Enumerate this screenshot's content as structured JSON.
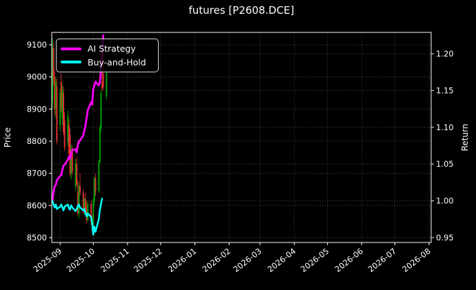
{
  "title": "futures [P2608.DCE]",
  "colors": {
    "background": "#000000",
    "text": "#ffffff",
    "grid": "#5c5c5c",
    "spine": "#ffffff",
    "candle_up": "#00a000",
    "candle_down": "#dd3232",
    "ai_strategy": "#ff00ff",
    "buy_and_hold": "#00ffff"
  },
  "chart_data": {
    "type": "candlestick+line",
    "title": "futures [P2608.DCE]",
    "grid": "dotted",
    "left_axis": {
      "label": "Price",
      "ticks": [
        8500,
        8600,
        8700,
        8800,
        8900,
        9000,
        9100
      ],
      "ylim": [
        8485,
        9140
      ]
    },
    "right_axis": {
      "label": "Return",
      "ticks": [
        "0.95",
        "1.00",
        "1.05",
        "1.10",
        "1.15",
        "1.20"
      ],
      "ylim": [
        0.943,
        1.229
      ]
    },
    "x_axis": {
      "tick_labels": [
        "2025-09",
        "2025-10",
        "2025-11",
        "2025-12",
        "2026-01",
        "2026-02",
        "2026-03",
        "2026-04",
        "2026-05",
        "2026-06",
        "2026-07",
        "2026-08"
      ],
      "range": [
        "2025-08-24",
        "2026-08-02"
      ],
      "label_rotation_deg": -38
    },
    "legend": [
      {
        "label": "AI Strategy",
        "color": "#ff00ff"
      },
      {
        "label": "Buy-and-Hold",
        "color": "#00ffff"
      }
    ],
    "candles_columns": [
      "date",
      "open",
      "high",
      "low",
      "close"
    ],
    "candles": [
      [
        "2025-08-25",
        8920,
        9120,
        8900,
        9090
      ],
      [
        "2025-08-26",
        9090,
        9105,
        8975,
        9000
      ],
      [
        "2025-08-27",
        9000,
        9020,
        8880,
        8900
      ],
      [
        "2025-08-28",
        8900,
        9000,
        8870,
        8985
      ],
      [
        "2025-08-29",
        8970,
        8995,
        8790,
        8800
      ],
      [
        "2025-09-01",
        8850,
        8965,
        8830,
        8950
      ],
      [
        "2025-09-02",
        8985,
        9010,
        8890,
        8900
      ],
      [
        "2025-09-03",
        8870,
        8975,
        8850,
        8960
      ],
      [
        "2025-09-04",
        8950,
        8970,
        8820,
        8830
      ],
      [
        "2025-09-05",
        8865,
        8890,
        8770,
        8780
      ],
      [
        "2025-09-08",
        8800,
        8895,
        8785,
        8880
      ],
      [
        "2025-09-09",
        8850,
        8870,
        8750,
        8760
      ],
      [
        "2025-09-10",
        8820,
        8840,
        8690,
        8700
      ],
      [
        "2025-09-11",
        8700,
        8790,
        8680,
        8775
      ],
      [
        "2025-09-12",
        8770,
        8785,
        8695,
        8705
      ],
      [
        "2025-09-15",
        8660,
        8745,
        8645,
        8730
      ],
      [
        "2025-09-16",
        8730,
        8750,
        8655,
        8665
      ],
      [
        "2025-09-17",
        8640,
        8680,
        8570,
        8575
      ],
      [
        "2025-09-18",
        8575,
        8670,
        8560,
        8660
      ],
      [
        "2025-09-19",
        8660,
        8700,
        8630,
        8640
      ],
      [
        "2025-09-22",
        8640,
        8650,
        8575,
        8580
      ],
      [
        "2025-09-23",
        8580,
        8625,
        8570,
        8620
      ],
      [
        "2025-09-24",
        8620,
        8640,
        8580,
        8590
      ],
      [
        "2025-09-25",
        8590,
        8610,
        8545,
        8555
      ],
      [
        "2025-09-26",
        8555,
        8615,
        8550,
        8605
      ],
      [
        "2025-09-29",
        8605,
        8615,
        8540,
        8550
      ],
      [
        "2025-09-30",
        8550,
        8570,
        8515,
        8525
      ],
      [
        "2025-10-01",
        8525,
        8625,
        8520,
        8615
      ],
      [
        "2025-10-02",
        8615,
        8690,
        8600,
        8685
      ],
      [
        "2025-10-03",
        8685,
        8700,
        8630,
        8645
      ],
      [
        "2025-10-06",
        8645,
        8740,
        8640,
        8735
      ],
      [
        "2025-10-07",
        8735,
        8850,
        8730,
        8840
      ],
      [
        "2025-10-08",
        8840,
        8960,
        8830,
        8950
      ],
      [
        "2025-10-09",
        8985,
        9020,
        8955,
        8965
      ],
      [
        "2025-10-10",
        9010,
        9110,
        8960,
        8970
      ],
      [
        "2025-10-13",
        8940,
        9015,
        8930,
        9012
      ]
    ],
    "series": [
      {
        "name": "AI Strategy",
        "color": "#ff00ff",
        "axis": "right",
        "points": [
          [
            "2025-08-25",
            1.0
          ],
          [
            "2025-08-26",
            1.012
          ],
          [
            "2025-08-27",
            1.02
          ],
          [
            "2025-08-28",
            1.021
          ],
          [
            "2025-08-29",
            1.028
          ],
          [
            "2025-09-01",
            1.034
          ],
          [
            "2025-09-02",
            1.035
          ],
          [
            "2025-09-03",
            1.042
          ],
          [
            "2025-09-04",
            1.048
          ],
          [
            "2025-09-05",
            1.049
          ],
          [
            "2025-09-08",
            1.056
          ],
          [
            "2025-09-09",
            1.06
          ],
          [
            "2025-09-10",
            1.057
          ],
          [
            "2025-09-11",
            1.065
          ],
          [
            "2025-09-12",
            1.069
          ],
          [
            "2025-09-15",
            1.07
          ],
          [
            "2025-09-16",
            1.066
          ],
          [
            "2025-09-17",
            1.076
          ],
          [
            "2025-09-18",
            1.081
          ],
          [
            "2025-09-19",
            1.082
          ],
          [
            "2025-09-22",
            1.089
          ],
          [
            "2025-09-23",
            1.096
          ],
          [
            "2025-09-24",
            1.103
          ],
          [
            "2025-09-25",
            1.113
          ],
          [
            "2025-09-26",
            1.123
          ],
          [
            "2025-09-29",
            1.134
          ],
          [
            "2025-09-30",
            1.131
          ],
          [
            "2025-10-01",
            1.152
          ],
          [
            "2025-10-02",
            1.157
          ],
          [
            "2025-10-03",
            1.162
          ],
          [
            "2025-10-06",
            1.157
          ],
          [
            "2025-10-07",
            1.161
          ],
          [
            "2025-10-08",
            1.178
          ],
          [
            "2025-10-09",
            1.2
          ],
          [
            "2025-10-10",
            1.225
          ]
        ]
      },
      {
        "name": "Buy-and-Hold",
        "color": "#00ffff",
        "axis": "right",
        "points": [
          [
            "2025-08-25",
            1.0
          ],
          [
            "2025-08-26",
            0.995
          ],
          [
            "2025-08-27",
            0.991
          ],
          [
            "2025-08-28",
            0.995
          ],
          [
            "2025-08-29",
            0.989
          ],
          [
            "2025-09-01",
            0.992
          ],
          [
            "2025-09-02",
            0.995
          ],
          [
            "2025-09-03",
            0.991
          ],
          [
            "2025-09-04",
            0.987
          ],
          [
            "2025-09-05",
            0.992
          ],
          [
            "2025-09-08",
            0.995
          ],
          [
            "2025-09-09",
            0.99
          ],
          [
            "2025-09-10",
            0.988
          ],
          [
            "2025-09-11",
            0.994
          ],
          [
            "2025-09-12",
            0.991
          ],
          [
            "2025-09-15",
            0.986
          ],
          [
            "2025-09-16",
            0.989
          ],
          [
            "2025-09-17",
            0.993
          ],
          [
            "2025-09-18",
            0.995
          ],
          [
            "2025-09-19",
            0.991
          ],
          [
            "2025-09-22",
            0.987
          ],
          [
            "2025-09-23",
            0.989
          ],
          [
            "2025-09-24",
            0.983
          ],
          [
            "2025-09-25",
            0.979
          ],
          [
            "2025-09-26",
            0.983
          ],
          [
            "2025-09-29",
            0.978
          ],
          [
            "2025-09-30",
            0.969
          ],
          [
            "2025-10-01",
            0.954
          ],
          [
            "2025-10-02",
            0.965
          ],
          [
            "2025-10-03",
            0.958
          ],
          [
            "2025-10-06",
            0.975
          ],
          [
            "2025-10-07",
            0.988
          ],
          [
            "2025-10-08",
            0.996
          ],
          [
            "2025-10-09",
            1.003
          ]
        ]
      }
    ]
  }
}
